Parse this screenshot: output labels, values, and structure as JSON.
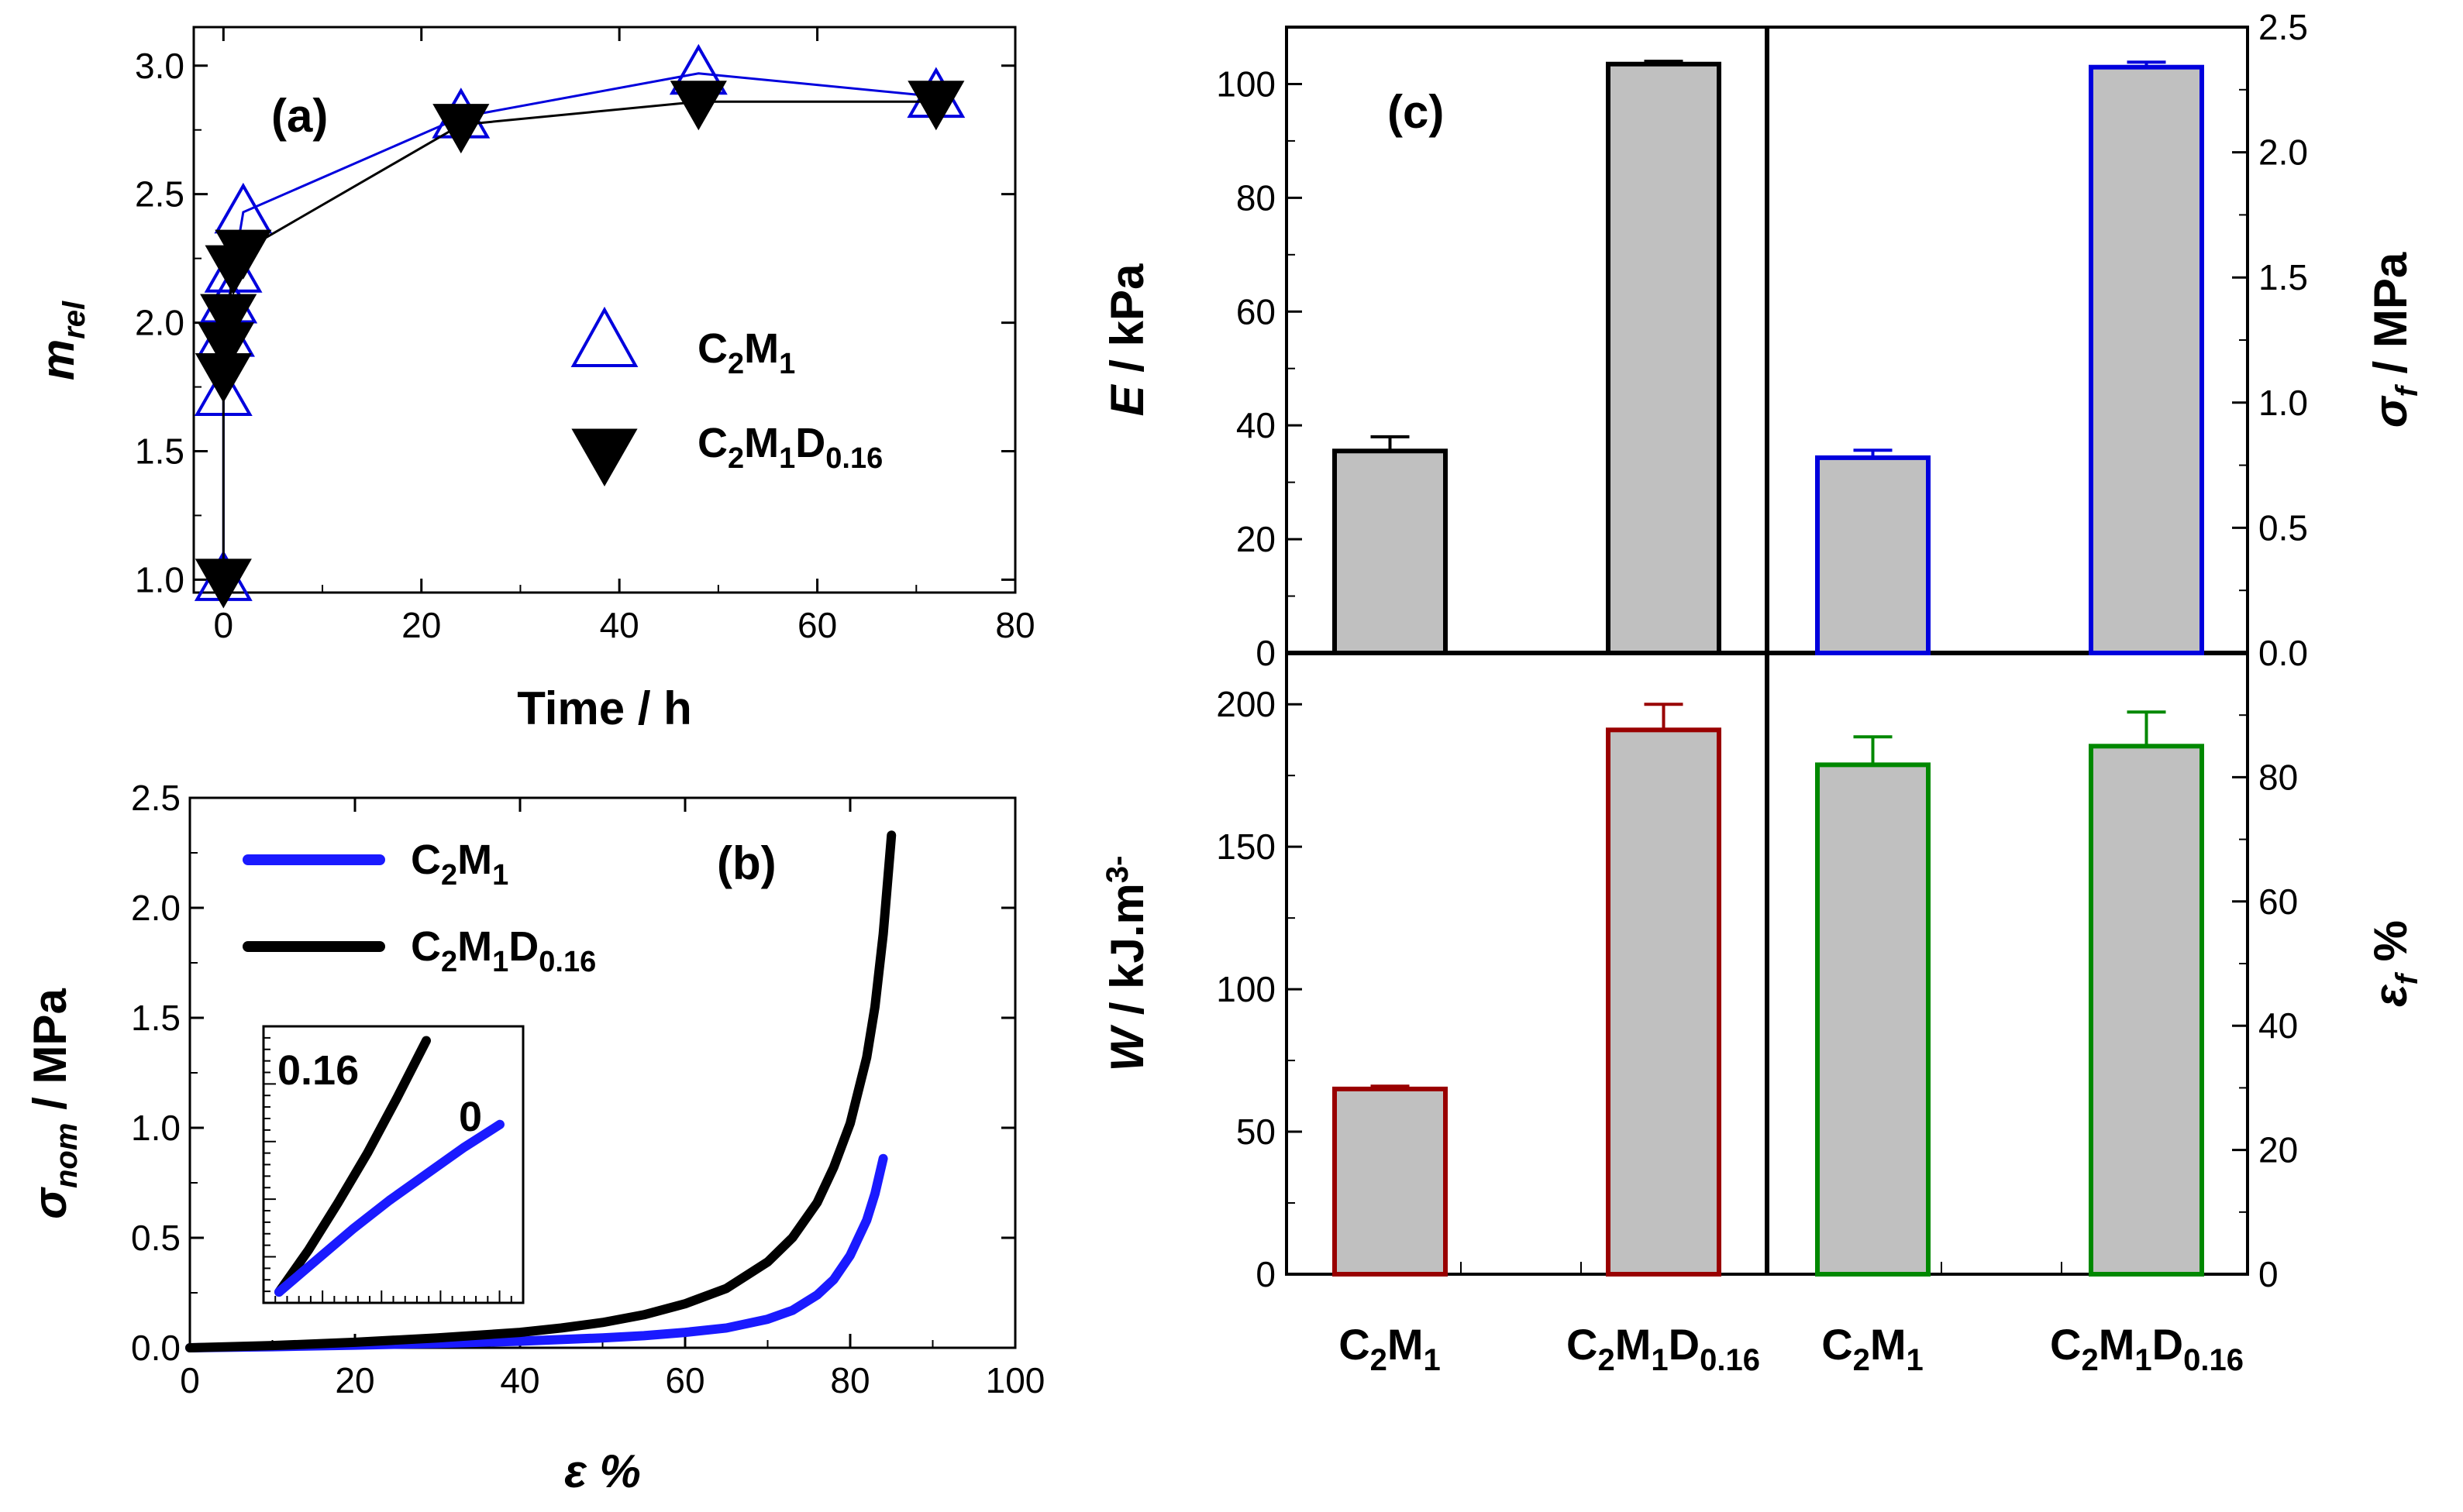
{
  "chart_data": [
    {
      "id": "a",
      "type": "scatter",
      "panel_label": "(a)",
      "xlabel": "Time / h",
      "ylabel": "m",
      "ylabel_sub": "rel",
      "xlim": [
        -3,
        80
      ],
      "ylim": [
        0.95,
        3.15
      ],
      "xticks": [
        "0",
        "20",
        "40",
        "60",
        "80"
      ],
      "yticks": [
        "1.0",
        "1.5",
        "2.0",
        "2.5",
        "3.0"
      ],
      "series": [
        {
          "name": "C2M1",
          "label_parts": [
            "C",
            "2",
            "M",
            "1"
          ],
          "color": "#0000dd",
          "marker": "triangle-up-open",
          "x": [
            0,
            0,
            0.25,
            0.5,
            1,
            2,
            24,
            48,
            72
          ],
          "y": [
            1.0,
            1.72,
            1.95,
            2.08,
            2.2,
            2.43,
            2.8,
            2.97,
            2.88
          ]
        },
        {
          "name": "C2M1D0.16",
          "label_parts": [
            "C",
            "2",
            "M",
            "1",
            "D",
            "0.16"
          ],
          "color": "#000000",
          "marker": "triangle-down-filled",
          "x": [
            0,
            0,
            0.25,
            0.5,
            1,
            2,
            24,
            48,
            72
          ],
          "y": [
            1.0,
            1.8,
            1.92,
            2.03,
            2.22,
            2.28,
            2.77,
            2.86,
            2.86
          ]
        }
      ]
    },
    {
      "id": "b",
      "type": "line",
      "panel_label": "(b)",
      "xlabel": "ε %",
      "ylabel": "σ",
      "ylabel_sub": "nom",
      "ylabel_tail": " / MPa",
      "xlim": [
        0,
        100
      ],
      "ylim": [
        0,
        2.5
      ],
      "xticks": [
        "0",
        "20",
        "40",
        "60",
        "80",
        "100"
      ],
      "yticks": [
        "0.0",
        "0.5",
        "1.0",
        "1.5",
        "2.0",
        "2.5"
      ],
      "series": [
        {
          "name": "C2M1",
          "label_parts": [
            "C",
            "2",
            "M",
            "1"
          ],
          "color": "#1a1aff",
          "x": [
            0,
            10,
            20,
            30,
            40,
            50,
            55,
            60,
            65,
            70,
            73,
            76,
            78,
            80,
            82,
            83,
            84
          ],
          "y": [
            0,
            0.005,
            0.012,
            0.02,
            0.03,
            0.045,
            0.055,
            0.07,
            0.09,
            0.13,
            0.17,
            0.24,
            0.31,
            0.42,
            0.58,
            0.7,
            0.86
          ]
        },
        {
          "name": "C2M1D0.16",
          "label_parts": [
            "C",
            "2",
            "M",
            "1",
            "D",
            "0.16"
          ],
          "color": "#000000",
          "x": [
            0,
            10,
            20,
            30,
            40,
            45,
            50,
            55,
            60,
            65,
            70,
            73,
            76,
            78,
            80,
            82,
            83,
            84,
            85
          ],
          "y": [
            0,
            0.01,
            0.025,
            0.045,
            0.07,
            0.09,
            0.115,
            0.15,
            0.2,
            0.27,
            0.39,
            0.5,
            0.66,
            0.82,
            1.02,
            1.32,
            1.55,
            1.88,
            2.33
          ]
        }
      ],
      "inset": {
        "labels": [
          "0.16",
          "0"
        ],
        "series": [
          {
            "name": "0.16",
            "color": "#000000",
            "x": [
              0,
              0.2,
              0.4,
              0.6,
              0.8,
              1.0
            ],
            "y": [
              0,
              0.16,
              0.34,
              0.53,
              0.74,
              0.96
            ]
          },
          {
            "name": "0",
            "color": "#1a1aff",
            "x": [
              0,
              0.25,
              0.5,
              0.75,
              1.0,
              1.25,
              1.5
            ],
            "y": [
              0,
              0.12,
              0.24,
              0.35,
              0.45,
              0.55,
              0.64
            ]
          }
        ]
      }
    },
    {
      "id": "c",
      "type": "bar",
      "panel_label": "(c)",
      "categories": [
        {
          "parts": [
            "C",
            "2",
            "M",
            "1"
          ]
        },
        {
          "parts": [
            "C",
            "2",
            "M",
            "1",
            "D",
            "0.16"
          ]
        },
        {
          "parts": [
            "C",
            "2",
            "M",
            "1"
          ]
        },
        {
          "parts": [
            "C",
            "2",
            "M",
            "1",
            "D",
            "0.16"
          ]
        }
      ],
      "bar_fill": "#c0c0c0",
      "subplots": [
        {
          "name": "E",
          "ylabel": "E",
          "ylabel_tail": " / kPa",
          "ylim": [
            0,
            110
          ],
          "yticks": [
            "0",
            "20",
            "40",
            "60",
            "80",
            "100"
          ],
          "tickvals": [
            0,
            20,
            40,
            60,
            80,
            100
          ],
          "color": "#000000",
          "values": [
            35.5,
            103.5
          ],
          "errors": [
            2.5,
            0.5
          ]
        },
        {
          "name": "sigma_f",
          "ylabel": "σ",
          "ylabel_sub": "f",
          "ylabel_tail": " / MPa",
          "ylim": [
            0,
            2.5
          ],
          "yticks": [
            "0.0",
            "0.5",
            "1.0",
            "1.5",
            "2.0",
            "2.5"
          ],
          "tickvals": [
            0,
            0.5,
            1.0,
            1.5,
            2.0,
            2.5
          ],
          "color": "#0000dd",
          "values": [
            0.78,
            2.34
          ],
          "errors": [
            0.03,
            0.02
          ]
        },
        {
          "name": "W",
          "ylabel": "W",
          "ylabel_tail": " / kJ.m",
          "ylabel_sup": "3-",
          "ylim": [
            0,
            218
          ],
          "yticks": [
            "0",
            "50",
            "100",
            "150",
            "200"
          ],
          "tickvals": [
            0,
            50,
            100,
            150,
            200
          ],
          "color": "#990000",
          "values": [
            65,
            191
          ],
          "errors": [
            1,
            9
          ]
        },
        {
          "name": "epsilon_f",
          "ylabel": "ε",
          "ylabel_sub": "f",
          "ylabel_tail": " %",
          "ylim": [
            0,
            100
          ],
          "yticks": [
            "0",
            "20",
            "40",
            "60",
            "80"
          ],
          "tickvals": [
            0,
            20,
            40,
            60,
            80
          ],
          "color": "#008800",
          "values": [
            82,
            85
          ],
          "errors": [
            4.5,
            5.5
          ]
        }
      ]
    }
  ]
}
